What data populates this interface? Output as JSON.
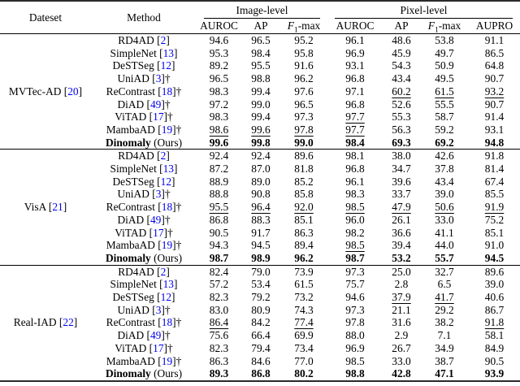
{
  "citation_color": "#0000EE",
  "table": {
    "headers": {
      "dataset": "Dateset",
      "method": "Method",
      "image_level": "Image-level",
      "pixel_level": "Pixel-level"
    },
    "image_cols": [
      {
        "label": "AUROC"
      },
      {
        "label": "AP"
      },
      {
        "label": "F1-max",
        "f1": true
      }
    ],
    "pixel_cols": [
      {
        "label": "AUROC"
      },
      {
        "label": "AP"
      },
      {
        "label": "F1-max",
        "f1": true
      },
      {
        "label": "AUPRO"
      }
    ],
    "groups": [
      {
        "dataset": "MVTec-AD",
        "cite": "20",
        "rows": [
          {
            "method": "RD4AD",
            "cite": "2",
            "dagger": false,
            "bold": false,
            "suffix": "",
            "values": [
              "94.6",
              "96.5",
              "95.2",
              "96.1",
              "48.6",
              "53.8",
              "91.1"
            ],
            "underline": []
          },
          {
            "method": "SimpleNet",
            "cite": "13",
            "dagger": false,
            "bold": false,
            "suffix": "",
            "values": [
              "95.3",
              "98.4",
              "95.8",
              "96.9",
              "45.9",
              "49.7",
              "86.5"
            ],
            "underline": []
          },
          {
            "method": "DeSTSeg",
            "cite": "12",
            "dagger": false,
            "bold": false,
            "suffix": "",
            "values": [
              "89.2",
              "95.5",
              "91.6",
              "93.1",
              "54.3",
              "50.9",
              "64.8"
            ],
            "underline": []
          },
          {
            "method": "UniAD",
            "cite": "3",
            "dagger": true,
            "bold": false,
            "suffix": "",
            "values": [
              "96.5",
              "98.8",
              "96.2",
              "96.8",
              "43.4",
              "49.5",
              "90.7"
            ],
            "underline": []
          },
          {
            "method": "ReContrast",
            "cite": "18",
            "dagger": true,
            "bold": false,
            "suffix": "",
            "values": [
              "98.3",
              "99.4",
              "97.6",
              "97.1",
              "60.2",
              "61.5",
              "93.2"
            ],
            "underline": [
              4,
              5,
              6
            ]
          },
          {
            "method": "DiAD",
            "cite": "49",
            "dagger": true,
            "bold": false,
            "suffix": "",
            "values": [
              "97.2",
              "99.0",
              "96.5",
              "96.8",
              "52.6",
              "55.5",
              "90.7"
            ],
            "underline": []
          },
          {
            "method": "ViTAD",
            "cite": "17",
            "dagger": true,
            "bold": false,
            "suffix": "",
            "values": [
              "98.3",
              "99.4",
              "97.3",
              "97.7",
              "55.3",
              "58.7",
              "91.4"
            ],
            "underline": [
              3
            ]
          },
          {
            "method": "MambaAD",
            "cite": "19",
            "dagger": true,
            "bold": false,
            "suffix": "",
            "values": [
              "98.6",
              "99.6",
              "97.8",
              "97.7",
              "56.3",
              "59.2",
              "93.1"
            ],
            "underline": [
              0,
              1,
              2,
              3
            ]
          },
          {
            "method": "Dinomaly",
            "cite": null,
            "dagger": false,
            "bold": true,
            "suffix": " (Ours)",
            "values": [
              "99.6",
              "99.8",
              "99.0",
              "98.4",
              "69.3",
              "69.2",
              "94.8"
            ],
            "underline": []
          }
        ]
      },
      {
        "dataset": "VisA",
        "cite": "21",
        "rows": [
          {
            "method": "RD4AD",
            "cite": "2",
            "dagger": false,
            "bold": false,
            "suffix": "",
            "values": [
              "92.4",
              "92.4",
              "89.6",
              "98.1",
              "38.0",
              "42.6",
              "91.8"
            ],
            "underline": []
          },
          {
            "method": "SimpleNet",
            "cite": "13",
            "dagger": false,
            "bold": false,
            "suffix": "",
            "values": [
              "87.2",
              "87.0",
              "81.8",
              "96.8",
              "34.7",
              "37.8",
              "81.4"
            ],
            "underline": []
          },
          {
            "method": "DeSTSeg",
            "cite": "12",
            "dagger": false,
            "bold": false,
            "suffix": "",
            "values": [
              "88.9",
              "89.0",
              "85.2",
              "96.1",
              "39.6",
              "43.4",
              "67.4"
            ],
            "underline": []
          },
          {
            "method": "UniAD",
            "cite": "3",
            "dagger": true,
            "bold": false,
            "suffix": "",
            "values": [
              "88.8",
              "90.8",
              "85.8",
              "98.3",
              "33.7",
              "39.0",
              "85.5"
            ],
            "underline": []
          },
          {
            "method": "ReContrast",
            "cite": "18",
            "dagger": true,
            "bold": false,
            "suffix": "",
            "values": [
              "95.5",
              "96.4",
              "92.0",
              "98.5",
              "47.9",
              "50.6",
              "91.9"
            ],
            "underline": [
              0,
              1,
              2,
              3,
              4,
              5,
              6
            ]
          },
          {
            "method": "DiAD",
            "cite": "49",
            "dagger": true,
            "bold": false,
            "suffix": "",
            "values": [
              "86.8",
              "88.3",
              "85.1",
              "96.0",
              "26.1",
              "33.0",
              "75.2"
            ],
            "underline": []
          },
          {
            "method": "ViTAD",
            "cite": "17",
            "dagger": true,
            "bold": false,
            "suffix": "",
            "values": [
              "90.5",
              "91.7",
              "86.3",
              "98.2",
              "36.6",
              "41.1",
              "85.1"
            ],
            "underline": []
          },
          {
            "method": "MambaAD",
            "cite": "19",
            "dagger": true,
            "bold": false,
            "suffix": "",
            "values": [
              "94.3",
              "94.5",
              "89.4",
              "98.5",
              "39.4",
              "44.0",
              "91.0"
            ],
            "underline": [
              3
            ]
          },
          {
            "method": "Dinomaly",
            "cite": null,
            "dagger": false,
            "bold": true,
            "suffix": " (Ours)",
            "values": [
              "98.7",
              "98.9",
              "96.2",
              "98.7",
              "53.2",
              "55.7",
              "94.5"
            ],
            "underline": []
          }
        ]
      },
      {
        "dataset": "Real-IAD",
        "cite": "22",
        "rows": [
          {
            "method": "RD4AD",
            "cite": "2",
            "dagger": false,
            "bold": false,
            "suffix": "",
            "values": [
              "82.4",
              "79.0",
              "73.9",
              "97.3",
              "25.0",
              "32.7",
              "89.6"
            ],
            "underline": []
          },
          {
            "method": "SimpleNet",
            "cite": "13",
            "dagger": false,
            "bold": false,
            "suffix": "",
            "values": [
              "57.2",
              "53.4",
              "61.5",
              "75.7",
              "2.8",
              "6.5",
              "39.0"
            ],
            "underline": []
          },
          {
            "method": "DeSTSeg",
            "cite": "12",
            "dagger": false,
            "bold": false,
            "suffix": "",
            "values": [
              "82.3",
              "79.2",
              "73.2",
              "94.6",
              "37.9",
              "41.7",
              "40.6"
            ],
            "underline": [
              4,
              5
            ]
          },
          {
            "method": "UniAD",
            "cite": "3",
            "dagger": true,
            "bold": false,
            "suffix": "",
            "values": [
              "83.0",
              "80.9",
              "74.3",
              "97.3",
              "21.1",
              "29.2",
              "86.7"
            ],
            "underline": []
          },
          {
            "method": "ReContrast",
            "cite": "18",
            "dagger": true,
            "bold": false,
            "suffix": "",
            "values": [
              "86.4",
              "84.2",
              "77.4",
              "97.8",
              "31.6",
              "38.2",
              "91.8"
            ],
            "underline": [
              0,
              2,
              6
            ]
          },
          {
            "method": "DiAD",
            "cite": "49",
            "dagger": true,
            "bold": false,
            "suffix": "",
            "values": [
              "75.6",
              "66.4",
              "69.9",
              "88.0",
              "2.9",
              "7.1",
              "58.1"
            ],
            "underline": []
          },
          {
            "method": "ViTAD",
            "cite": "17",
            "dagger": true,
            "bold": false,
            "suffix": "",
            "values": [
              "82.3",
              "79.4",
              "73.4",
              "96.9",
              "26.7",
              "34.9",
              "84.9"
            ],
            "underline": []
          },
          {
            "method": "MambaAD",
            "cite": "19",
            "dagger": true,
            "bold": false,
            "suffix": "",
            "values": [
              "86.3",
              "84.6",
              "77.0",
              "98.5",
              "33.0",
              "38.7",
              "90.5"
            ],
            "underline": [
              1,
              3
            ]
          },
          {
            "method": "Dinomaly",
            "cite": null,
            "dagger": false,
            "bold": true,
            "suffix": " (Ours)",
            "values": [
              "89.3",
              "86.8",
              "80.2",
              "98.8",
              "42.8",
              "47.1",
              "93.9"
            ],
            "underline": []
          }
        ]
      }
    ]
  }
}
